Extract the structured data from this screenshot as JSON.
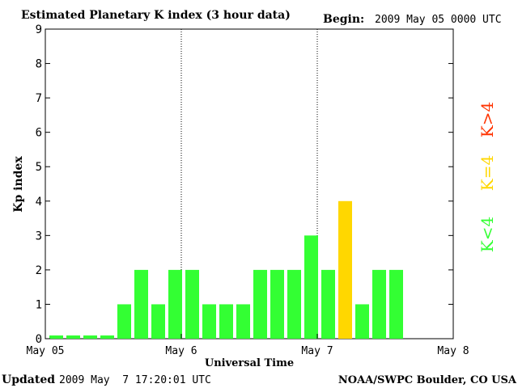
{
  "chart_data": {
    "type": "bar",
    "title": "Estimated Planetary K index (3 hour data)",
    "begin_label": "Begin:",
    "begin_value": "2009 May 05 0000 UTC",
    "ylabel": "Kp index",
    "xlabel": "Universal Time",
    "ylim": [
      0,
      9
    ],
    "yticks": [
      "0",
      "1",
      "2",
      "3",
      "4",
      "5",
      "6",
      "7",
      "8",
      "9"
    ],
    "xlim": [
      0,
      24
    ],
    "xticks": [
      {
        "pos": 0,
        "label": "May 05"
      },
      {
        "pos": 8,
        "label": "May 6"
      },
      {
        "pos": 16,
        "label": "May 7"
      },
      {
        "pos": 24,
        "label": "May 8"
      }
    ],
    "day_dividers": [
      8,
      16
    ],
    "values": [
      0,
      0,
      0,
      0,
      1,
      2,
      1,
      2,
      2,
      1,
      1,
      1,
      2,
      2,
      2,
      3,
      2,
      4,
      1,
      2,
      2
    ],
    "grid": false,
    "legend": [
      {
        "label": "K<4",
        "color": "#33ff33"
      },
      {
        "label": "K=4",
        "color": "#ffd700"
      },
      {
        "label": "K>4",
        "color": "#ff3300"
      }
    ]
  },
  "footer": {
    "updated_label": "Updated",
    "updated_value": "2009 May  7 17:20:01 UTC",
    "source": "NOAA/SWPC Boulder, CO USA"
  },
  "colors": {
    "low": "#33ff33",
    "equal": "#ffd700",
    "high": "#ff3300",
    "axis": "#000000"
  }
}
